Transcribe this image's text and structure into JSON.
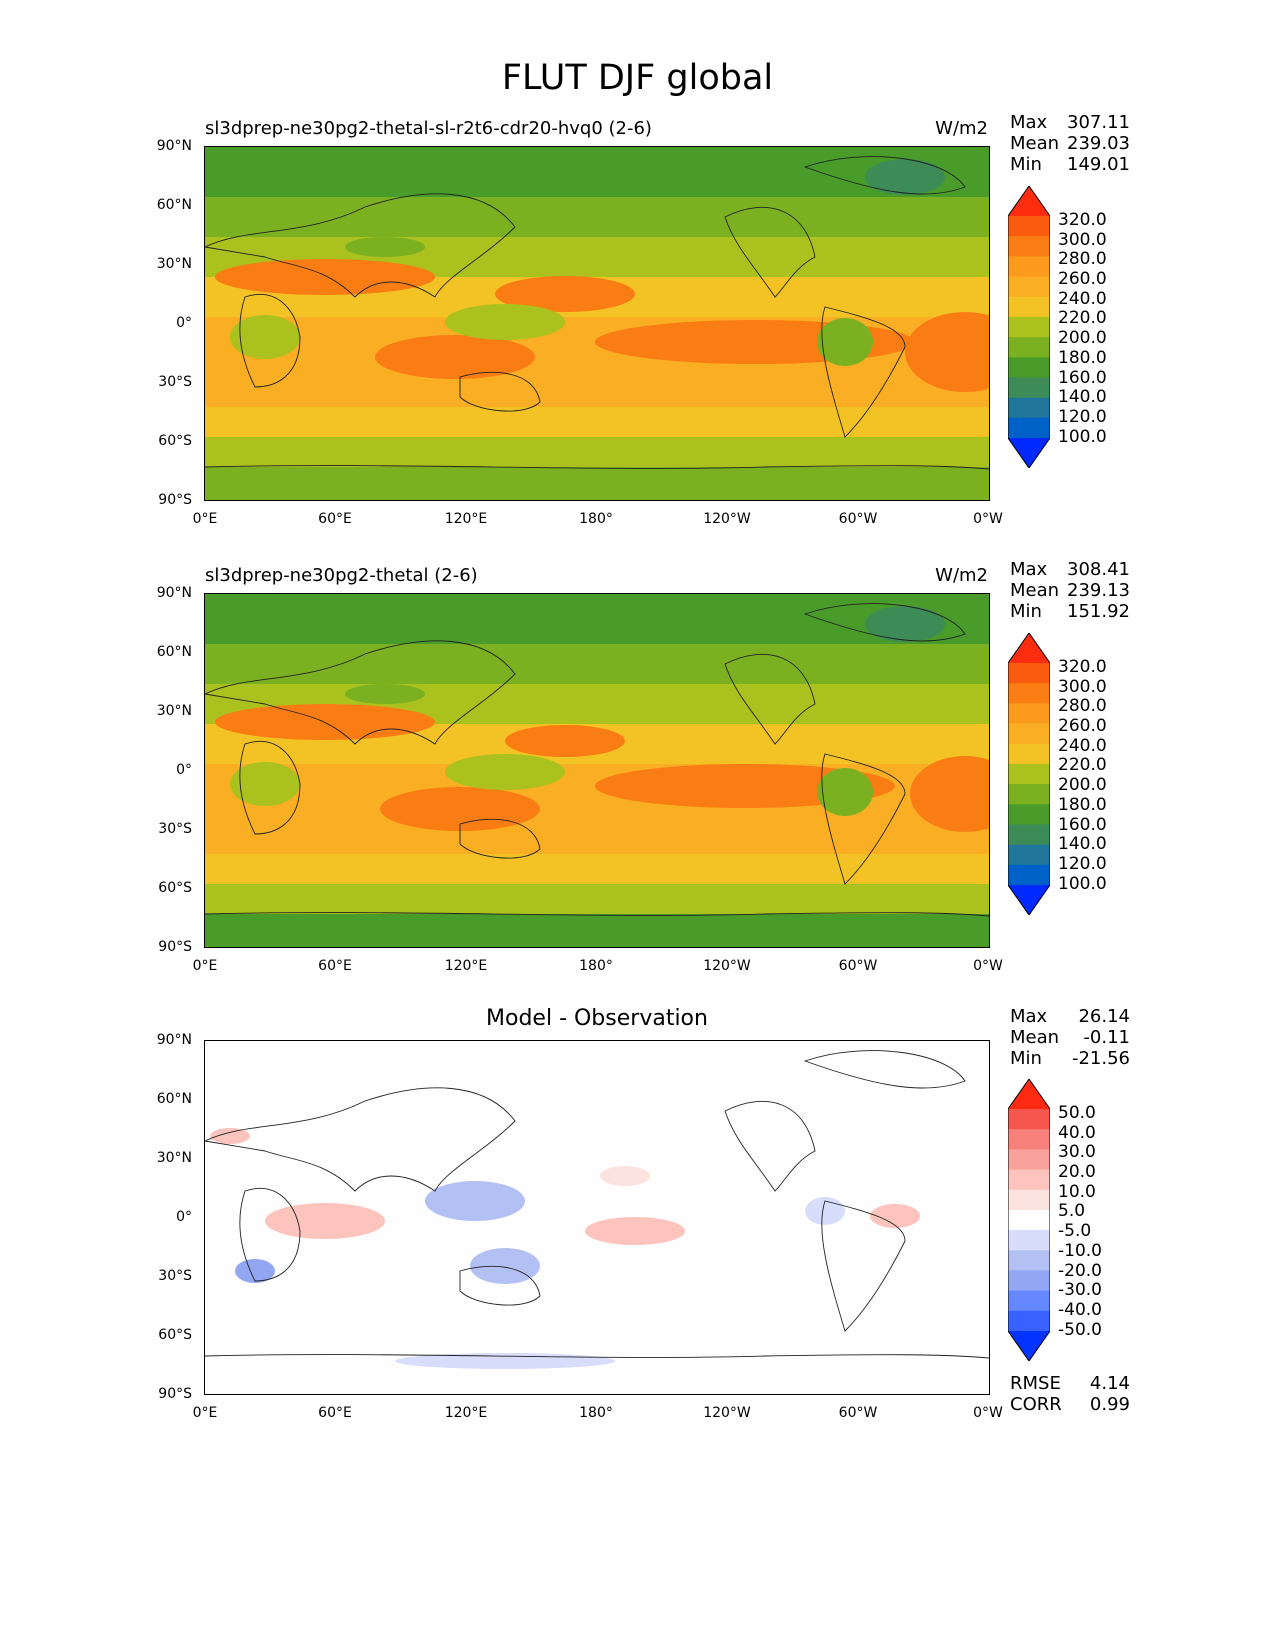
{
  "figure": {
    "title": "FLUT DJF global"
  },
  "panels": [
    {
      "kind": "field",
      "title_left": "sl3dprep-ne30pg2-thetal-sl-r2t6-cdr20-hvq0 (2-6)",
      "units": "W/m2",
      "stats": {
        "max_label": "Max",
        "max": "307.11",
        "mean_label": "Mean",
        "mean": "239.03",
        "min_label": "Min",
        "min": "149.01"
      },
      "colorbar": [
        "320.0",
        "300.0",
        "280.0",
        "260.0",
        "240.0",
        "220.0",
        "200.0",
        "180.0",
        "160.0",
        "140.0",
        "120.0",
        "100.0"
      ]
    },
    {
      "kind": "field",
      "title_left": "sl3dprep-ne30pg2-thetal (2-6)",
      "units": "W/m2",
      "stats": {
        "max_label": "Max",
        "max": "308.41",
        "mean_label": "Mean",
        "mean": "239.13",
        "min_label": "Min",
        "min": "151.92"
      },
      "colorbar": [
        "320.0",
        "300.0",
        "280.0",
        "260.0",
        "240.0",
        "220.0",
        "200.0",
        "180.0",
        "160.0",
        "140.0",
        "120.0",
        "100.0"
      ]
    },
    {
      "kind": "diff",
      "title_center": "Model - Observation",
      "stats": {
        "max_label": "Max",
        "max": "26.14",
        "mean_label": "Mean",
        "mean": "-0.11",
        "min_label": "Min",
        "min": "-21.56"
      },
      "colorbar": [
        "50.0",
        "40.0",
        "30.0",
        "20.0",
        "10.0",
        "5.0",
        "-5.0",
        "-10.0",
        "-20.0",
        "-30.0",
        "-40.0",
        "-50.0"
      ],
      "rmse_label": "RMSE",
      "rmse": "4.14",
      "corr_label": "CORR",
      "corr": "0.99"
    }
  ],
  "axes": {
    "y_ticks": [
      "90°N",
      "60°N",
      "30°N",
      "0°",
      "30°S",
      "60°S",
      "90°S"
    ],
    "x_ticks": [
      "0°E",
      "60°E",
      "120°E",
      "180°",
      "120°W",
      "60°W",
      "0°W"
    ]
  },
  "colors": {
    "field_levels": [
      "#0029ff",
      "#0062c8",
      "#20779b",
      "#3d8b56",
      "#4a9c2a",
      "#7bb121",
      "#aac11e",
      "#f3c224",
      "#f9ae23",
      "#fb9a1c",
      "#fa7d14",
      "#f95b0f",
      "#ff2d10"
    ],
    "diff_levels": [
      "#0433ff",
      "#3862ff",
      "#6688ff",
      "#92a6f3",
      "#b3c0f3",
      "#d7ddfa",
      "#fefefe",
      "#fde3df",
      "#fcc4bc",
      "#f9a19b",
      "#f7807a",
      "#f5574f",
      "#ff2a11"
    ]
  },
  "chart_data": [
    {
      "type": "heatmap",
      "title": "sl3dprep-ne30pg2-thetal-sl-r2t6-cdr20-hvq0 (2-6)",
      "units": "W/m2",
      "x_ticks": [
        "0°E",
        "60°E",
        "120°E",
        "180°",
        "120°W",
        "60°W",
        "0°W"
      ],
      "y_ticks": [
        "90°N",
        "60°N",
        "30°N",
        "0°",
        "30°S",
        "60°S",
        "90°S"
      ],
      "xlim": [
        0,
        360
      ],
      "ylim": [
        -90,
        90
      ],
      "levels": [
        100,
        120,
        140,
        160,
        180,
        200,
        220,
        240,
        260,
        280,
        300,
        320
      ],
      "stats": {
        "max": 307.11,
        "mean": 239.03,
        "min": 149.01
      }
    },
    {
      "type": "heatmap",
      "title": "sl3dprep-ne30pg2-thetal (2-6)",
      "units": "W/m2",
      "x_ticks": [
        "0°E",
        "60°E",
        "120°E",
        "180°",
        "120°W",
        "60°W",
        "0°W"
      ],
      "y_ticks": [
        "90°N",
        "60°N",
        "30°N",
        "0°",
        "30°S",
        "60°S",
        "90°S"
      ],
      "xlim": [
        0,
        360
      ],
      "ylim": [
        -90,
        90
      ],
      "levels": [
        100,
        120,
        140,
        160,
        180,
        200,
        220,
        240,
        260,
        280,
        300,
        320
      ],
      "stats": {
        "max": 308.41,
        "mean": 239.13,
        "min": 151.92
      }
    },
    {
      "type": "heatmap",
      "title": "Model - Observation",
      "x_ticks": [
        "0°E",
        "60°E",
        "120°E",
        "180°",
        "120°W",
        "60°W",
        "0°W"
      ],
      "y_ticks": [
        "90°N",
        "60°N",
        "30°N",
        "0°",
        "30°S",
        "60°S",
        "90°S"
      ],
      "xlim": [
        0,
        360
      ],
      "ylim": [
        -90,
        90
      ],
      "levels": [
        -50,
        -40,
        -30,
        -20,
        -10,
        -5,
        5,
        10,
        20,
        30,
        40,
        50
      ],
      "stats": {
        "max": 26.14,
        "mean": -0.11,
        "min": -21.56,
        "rmse": 4.14,
        "corr": 0.99
      }
    }
  ]
}
